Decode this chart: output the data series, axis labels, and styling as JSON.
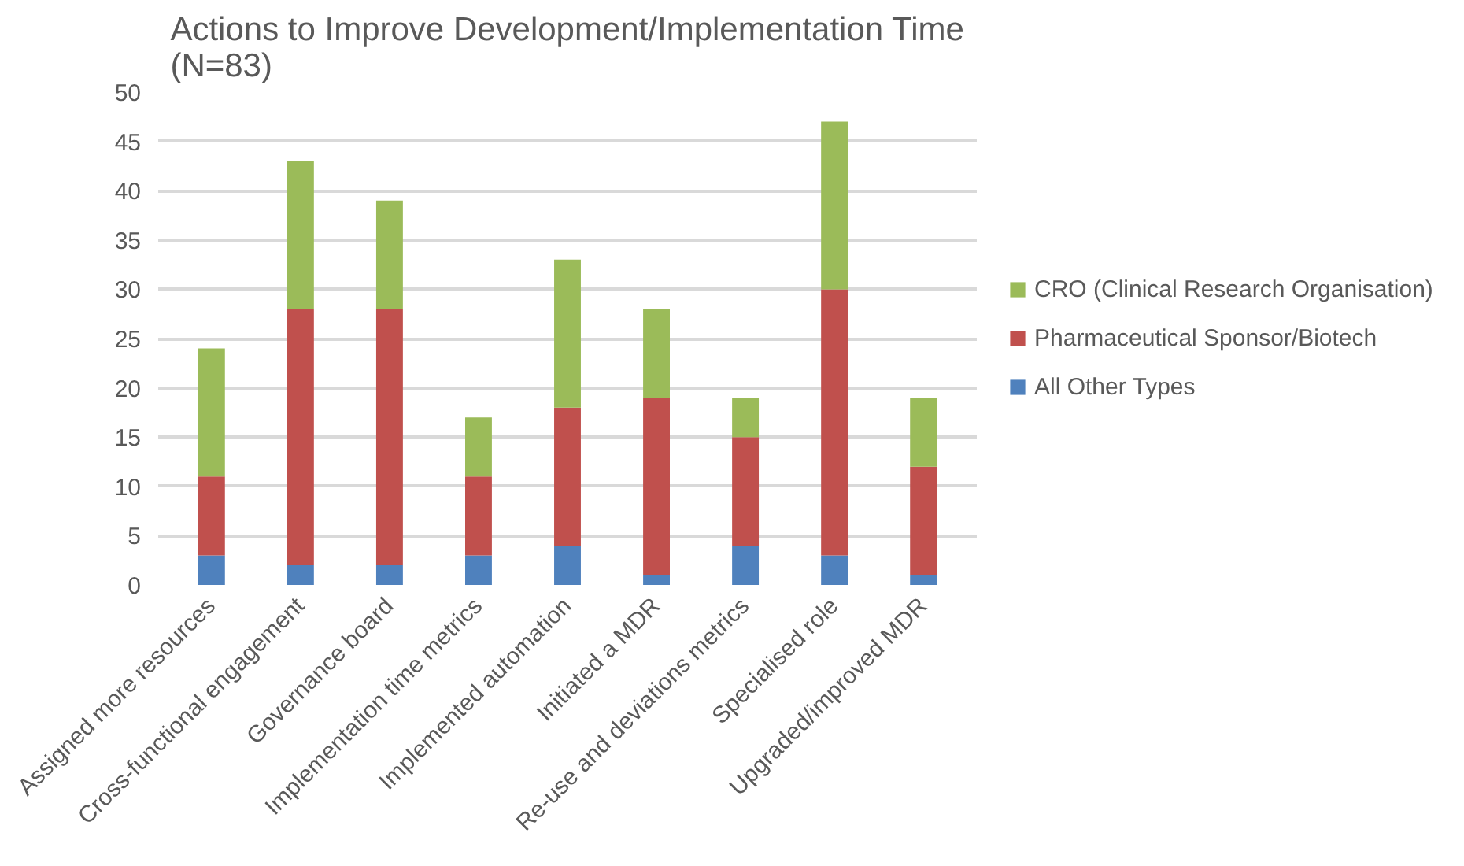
{
  "chart_data": {
    "type": "bar",
    "title": "Actions to Improve Development/Implementation Time\n(N=83)",
    "stacked": true,
    "categories": [
      "Assigned more resources",
      "Cross-functional engagement",
      "Governance board",
      "Implementation time metrics",
      "Implemented automation",
      "Initiated a MDR",
      "Re-use and deviations metrics",
      "Specialised role",
      "Upgraded/improved MDR"
    ],
    "series": [
      {
        "name": "All Other Types",
        "color": "#4f81bd",
        "values": [
          3,
          2,
          2,
          3,
          4,
          1,
          4,
          3,
          1
        ]
      },
      {
        "name": "Pharmaceutical Sponsor/Biotech",
        "color": "#c0504d",
        "values": [
          8,
          26,
          26,
          8,
          14,
          18,
          11,
          27,
          11
        ]
      },
      {
        "name": "CRO (Clinical Research Organisation)",
        "color": "#9bbb59",
        "values": [
          13,
          15,
          11,
          6,
          15,
          9,
          4,
          17,
          7
        ]
      }
    ],
    "ylim": [
      0,
      50
    ],
    "yticks": [
      0,
      5,
      10,
      15,
      20,
      25,
      30,
      35,
      40,
      45,
      50
    ],
    "grid": "y",
    "legend": "right"
  }
}
